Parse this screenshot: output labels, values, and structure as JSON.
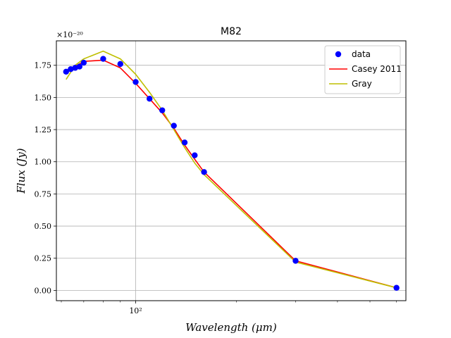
{
  "chart_data": {
    "type": "line",
    "title": "M82",
    "xlabel": "Wavelength (μm)",
    "ylabel": "Flux (Jy)",
    "x_scale": "log",
    "xlim": [
      58,
      640
    ],
    "ylim": [
      -0.08,
      1.94
    ],
    "offset_text": "×10⁻²⁰",
    "y_ticks": [
      "0.00",
      "0.25",
      "0.50",
      "0.75",
      "1.00",
      "1.25",
      "1.50",
      "1.75"
    ],
    "y_tick_values": [
      0.0,
      0.25,
      0.5,
      0.75,
      1.0,
      1.25,
      1.5,
      1.75
    ],
    "x_ticks": [
      "10²"
    ],
    "x_tick_values": [
      100
    ],
    "x_minor_ticks": [
      60,
      70,
      80,
      90,
      200,
      300,
      400,
      500,
      600
    ],
    "grid": true,
    "legend_position": "top-right",
    "series": [
      {
        "name": "data",
        "kind": "scatter",
        "color": "#0000ff",
        "x": [
          62,
          64,
          66,
          68,
          70,
          80,
          90,
          100,
          110,
          120,
          130,
          140,
          150,
          160,
          300,
          600
        ],
        "y": [
          1.7,
          1.72,
          1.73,
          1.74,
          1.77,
          1.8,
          1.76,
          1.62,
          1.49,
          1.4,
          1.28,
          1.15,
          1.05,
          0.92,
          0.23,
          0.02
        ]
      },
      {
        "name": "Casey 2011",
        "kind": "line",
        "color": "#ff0000",
        "x": [
          62,
          66,
          70,
          80,
          90,
          100,
          110,
          120,
          130,
          140,
          150,
          160,
          300,
          600
        ],
        "y": [
          1.7,
          1.74,
          1.78,
          1.79,
          1.73,
          1.61,
          1.49,
          1.38,
          1.26,
          1.13,
          1.02,
          0.92,
          0.23,
          0.02
        ]
      },
      {
        "name": "Gray",
        "kind": "line",
        "color": "#bfbf00",
        "x": [
          62,
          66,
          70,
          80,
          90,
          100,
          110,
          120,
          130,
          140,
          150,
          160,
          300,
          600
        ],
        "y": [
          1.64,
          1.75,
          1.8,
          1.86,
          1.8,
          1.68,
          1.54,
          1.4,
          1.25,
          1.11,
          0.99,
          0.9,
          0.22,
          0.02
        ]
      }
    ]
  }
}
